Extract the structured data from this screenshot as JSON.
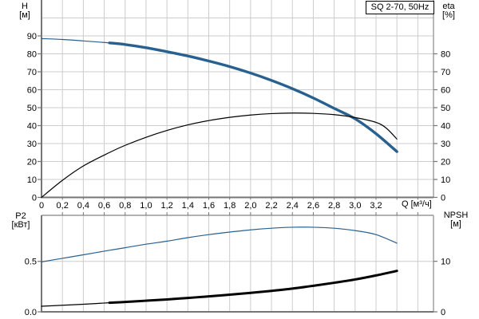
{
  "title_box": {
    "label": "SQ 2-70, 50Hz"
  },
  "labels": {
    "top_left": {
      "name": "H",
      "unit": "[м]"
    },
    "top_right": {
      "name": "eta",
      "unit": "[%]"
    },
    "bottom_left": {
      "name": "P2",
      "unit": "[кВт]"
    },
    "bottom_right": {
      "name": "NPSH",
      "unit": "[м]"
    },
    "x_axis": {
      "label": "Q [м³/ч]"
    }
  },
  "colors": {
    "curve_blue": "#28608f",
    "curve_black": "#000000",
    "grid": "#cccccc",
    "border": "#999999",
    "axis": "#767676",
    "text": "#000000",
    "background": "#ffffff"
  },
  "chart_data": [
    {
      "type": "line",
      "title": "SQ 2-70, 50Hz",
      "xlabel": "Q [м³/ч]",
      "ylabel_left": "H [м]",
      "ylabel_right": "eta [%]",
      "grid": true,
      "legend": "none",
      "x_range": [
        0,
        3.75
      ],
      "y_left_range": [
        0,
        110
      ],
      "y_right_range": [
        0,
        110
      ],
      "grid_y_step": 10,
      "x_grid_step": 0.2,
      "x_ticks": [
        [
          0,
          "0"
        ],
        [
          0.2,
          "0,2"
        ],
        [
          0.4,
          "0,4"
        ],
        [
          0.6,
          "0,6"
        ],
        [
          0.8,
          "0,8"
        ],
        [
          1,
          "1,0"
        ],
        [
          1.2,
          "1,2"
        ],
        [
          1.4,
          "1,4"
        ],
        [
          1.6,
          "1,6"
        ],
        [
          1.8,
          "1,8"
        ],
        [
          2,
          "2,0"
        ],
        [
          2.2,
          "2,2"
        ],
        [
          2.4,
          "2,4"
        ],
        [
          2.6,
          "2,6"
        ],
        [
          2.8,
          "2,8"
        ],
        [
          3,
          "3,0"
        ],
        [
          3.2,
          "3,2"
        ]
      ],
      "y_left_ticks": [
        [
          0,
          "0"
        ],
        [
          10,
          "10"
        ],
        [
          20,
          "20"
        ],
        [
          30,
          "30"
        ],
        [
          40,
          "40"
        ],
        [
          50,
          "50"
        ],
        [
          60,
          "60"
        ],
        [
          70,
          "70"
        ],
        [
          80,
          "80"
        ],
        [
          90,
          "90"
        ]
      ],
      "y_right_ticks": [
        [
          0,
          "0"
        ],
        [
          10,
          "10"
        ],
        [
          20,
          "20"
        ],
        [
          30,
          "30"
        ],
        [
          40,
          "40"
        ],
        [
          50,
          "50"
        ],
        [
          60,
          "60"
        ],
        [
          70,
          "70"
        ],
        [
          80,
          "80"
        ]
      ],
      "series": [
        {
          "name": "H",
          "axis": "left",
          "color": "#28608f",
          "width": 3.4,
          "thin_until": 0.65,
          "thin_width": 1.2,
          "points": [
            [
              0,
              88.5
            ],
            [
              0.2,
              88.0
            ],
            [
              0.4,
              87.2
            ],
            [
              0.65,
              86.1
            ],
            [
              0.8,
              85.2
            ],
            [
              1.0,
              83.4
            ],
            [
              1.2,
              81.2
            ],
            [
              1.4,
              78.8
            ],
            [
              1.6,
              76.0
            ],
            [
              1.8,
              72.9
            ],
            [
              2.0,
              69.3
            ],
            [
              2.2,
              65.2
            ],
            [
              2.4,
              60.6
            ],
            [
              2.6,
              55.4
            ],
            [
              2.8,
              49.6
            ],
            [
              3.0,
              43.8
            ],
            [
              3.2,
              35.5
            ],
            [
              3.4,
              25.5
            ]
          ]
        },
        {
          "name": "eta",
          "axis": "right",
          "color": "#000000",
          "width": 1.2,
          "points": [
            [
              0,
              0
            ],
            [
              0.2,
              9.5
            ],
            [
              0.4,
              17.5
            ],
            [
              0.65,
              25.0
            ],
            [
              0.8,
              29.0
            ],
            [
              1.0,
              33.5
            ],
            [
              1.2,
              37.3
            ],
            [
              1.4,
              40.4
            ],
            [
              1.6,
              42.8
            ],
            [
              1.8,
              44.6
            ],
            [
              2.0,
              45.9
            ],
            [
              2.2,
              46.7
            ],
            [
              2.4,
              47.0
            ],
            [
              2.6,
              46.8
            ],
            [
              2.8,
              46.1
            ],
            [
              3.0,
              44.5
            ],
            [
              3.2,
              41.8
            ],
            [
              3.3,
              38.5
            ],
            [
              3.4,
              32.5
            ]
          ]
        }
      ]
    },
    {
      "type": "line",
      "title": "",
      "xlabel": "Q [м³/ч]",
      "ylabel_left": "P2 [кВт]",
      "ylabel_right": "NPSH [м]",
      "grid": true,
      "legend": "none",
      "x_range": [
        0,
        3.75
      ],
      "y_left_range": [
        0,
        0.956
      ],
      "y_right_range": [
        0,
        19.1
      ],
      "grid_y_values": [
        0.5
      ],
      "x_grid_step": 0.2,
      "x_ticks": [],
      "y_left_ticks": [
        [
          0,
          "0.0"
        ],
        [
          0.5,
          "0.5"
        ]
      ],
      "y_right_ticks": [
        [
          0,
          "0"
        ],
        [
          10,
          "10"
        ]
      ],
      "series": [
        {
          "name": "P2",
          "axis": "left",
          "color": "#28608f",
          "width": 1.2,
          "points": [
            [
              0,
              0.495
            ],
            [
              0.2,
              0.53
            ],
            [
              0.4,
              0.565
            ],
            [
              0.65,
              0.61
            ],
            [
              0.8,
              0.635
            ],
            [
              1.0,
              0.67
            ],
            [
              1.2,
              0.7
            ],
            [
              1.4,
              0.735
            ],
            [
              1.6,
              0.765
            ],
            [
              1.8,
              0.79
            ],
            [
              2.0,
              0.812
            ],
            [
              2.2,
              0.828
            ],
            [
              2.4,
              0.838
            ],
            [
              2.6,
              0.838
            ],
            [
              2.8,
              0.828
            ],
            [
              3.0,
              0.805
            ],
            [
              3.2,
              0.765
            ],
            [
              3.4,
              0.68
            ]
          ]
        },
        {
          "name": "NPSH",
          "axis": "right",
          "color": "#000000",
          "width": 3,
          "thin_until": 0.65,
          "thin_width": 1.2,
          "points": [
            [
              0,
              1.1
            ],
            [
              0.2,
              1.3
            ],
            [
              0.4,
              1.5
            ],
            [
              0.65,
              1.8
            ],
            [
              0.8,
              1.95
            ],
            [
              1.0,
              2.2
            ],
            [
              1.2,
              2.45
            ],
            [
              1.4,
              2.75
            ],
            [
              1.6,
              3.05
            ],
            [
              1.8,
              3.4
            ],
            [
              2.0,
              3.75
            ],
            [
              2.2,
              4.15
            ],
            [
              2.4,
              4.6
            ],
            [
              2.6,
              5.15
            ],
            [
              2.8,
              5.75
            ],
            [
              3.0,
              6.4
            ],
            [
              3.2,
              7.2
            ],
            [
              3.4,
              8.1
            ]
          ]
        }
      ]
    }
  ]
}
